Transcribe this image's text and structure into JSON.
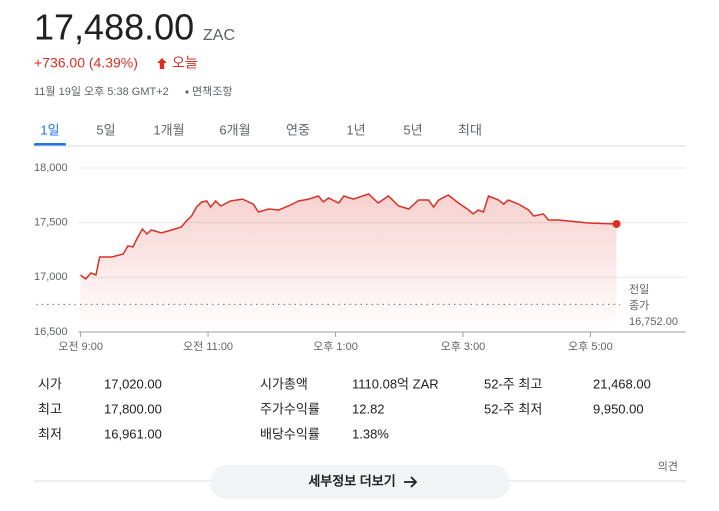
{
  "header": {
    "price": "17,488.00",
    "currency": "ZAC",
    "change": "+736.00 (4.39%)",
    "period": "오늘",
    "timestamp": "11월 19일 오후 5:38 GMT+2",
    "disclaimer": "면책조항"
  },
  "tabs": {
    "items": [
      "1일",
      "5일",
      "1개월",
      "6개월",
      "연중",
      "1년",
      "5년",
      "최대"
    ],
    "selected": 0
  },
  "chart_data": {
    "type": "line",
    "color": "#d93025",
    "x": [
      9.0,
      9.08,
      9.16,
      9.24,
      9.3,
      9.49,
      9.67,
      9.74,
      9.82,
      9.89,
      9.97,
      10.04,
      10.11,
      10.27,
      10.43,
      10.58,
      10.66,
      10.74,
      10.82,
      10.9,
      10.98,
      11.04,
      11.12,
      11.2,
      11.35,
      11.54,
      11.71,
      11.79,
      11.95,
      12.11,
      12.26,
      12.42,
      12.58,
      12.73,
      12.81,
      12.89,
      13.05,
      13.13,
      13.28,
      13.52,
      13.67,
      13.83,
      13.99,
      14.15,
      14.3,
      14.46,
      14.54,
      14.62,
      14.77,
      14.93,
      15.09,
      15.16,
      15.24,
      15.32,
      15.4,
      15.56,
      15.64,
      15.71,
      15.87,
      16.03,
      16.11,
      16.26,
      16.34,
      16.5,
      16.97,
      17.41
    ],
    "values": [
      17020,
      16985,
      17040,
      17021,
      17186,
      17186,
      17213,
      17287,
      17278,
      17360,
      17442,
      17396,
      17433,
      17406,
      17433,
      17460,
      17515,
      17561,
      17643,
      17689,
      17698,
      17643,
      17698,
      17652,
      17698,
      17716,
      17670,
      17598,
      17625,
      17616,
      17652,
      17698,
      17716,
      17744,
      17690,
      17726,
      17680,
      17744,
      17716,
      17762,
      17680,
      17744,
      17652,
      17625,
      17707,
      17707,
      17643,
      17707,
      17753,
      17680,
      17616,
      17580,
      17616,
      17598,
      17744,
      17707,
      17670,
      17707,
      17671,
      17616,
      17561,
      17580,
      17524,
      17524,
      17497,
      17488
    ],
    "xlim": [
      8.3,
      18.5
    ],
    "xticks": [
      {
        "value": 9,
        "label": "오전 9:00"
      },
      {
        "value": 11,
        "label": "오전 11:00"
      },
      {
        "value": 13,
        "label": "오후 1:00"
      },
      {
        "value": 15,
        "label": "오후 3:00"
      },
      {
        "value": 17,
        "label": "오후 5:00"
      }
    ],
    "ylim": [
      16500,
      18000
    ],
    "yticks": [
      {
        "value": 16500,
        "label": "16,500"
      },
      {
        "value": 17000,
        "label": "17,000"
      },
      {
        "value": 17500,
        "label": "17,500"
      },
      {
        "value": 18000,
        "label": "18,000"
      }
    ],
    "grid": true,
    "previous_close": {
      "value": 16752,
      "label": "16,752.00"
    },
    "previous_close_title": [
      "전일",
      "종가"
    ]
  },
  "stats": [
    [
      {
        "label": "시가",
        "value": "17,020.00"
      },
      {
        "label": "최고",
        "value": "17,800.00"
      },
      {
        "label": "최저",
        "value": "16,961.00"
      }
    ],
    [
      {
        "label": "시가총액",
        "value": "1110.08억 ZAR"
      },
      {
        "label": "주가수익률",
        "value": "12.82"
      },
      {
        "label": "배당수익률",
        "value": "1.38%"
      }
    ],
    [
      {
        "label": "52-주 최고",
        "value": "21,468.00"
      },
      {
        "label": "52-주 최저",
        "value": "9,950.00"
      }
    ]
  ],
  "footer": {
    "more_button": "세부정보 더보기",
    "feedback": "의견"
  }
}
